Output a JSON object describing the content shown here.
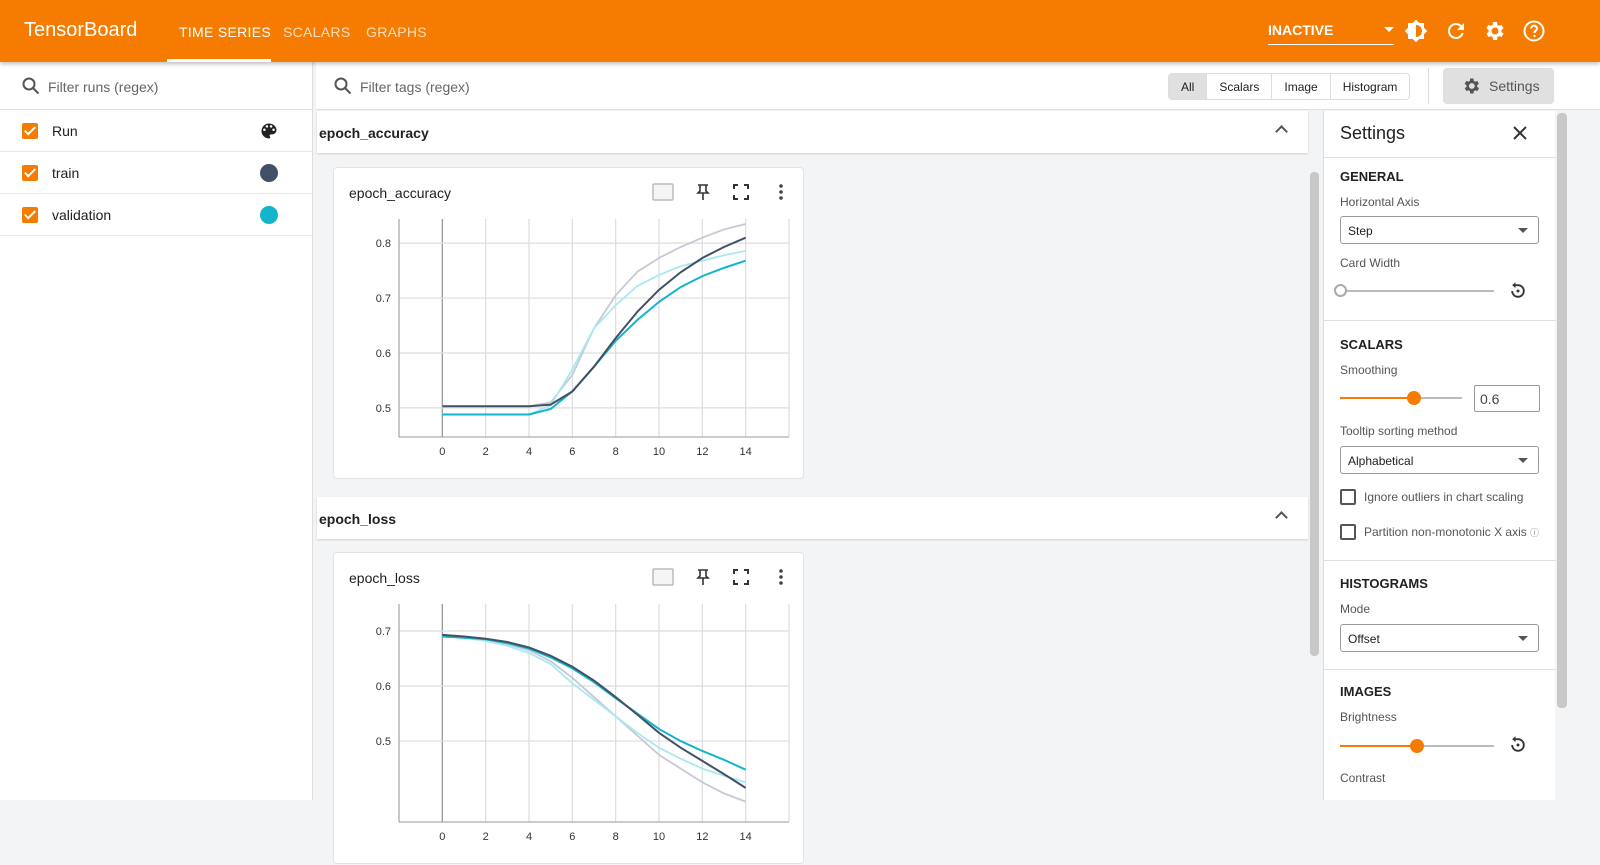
{
  "header": {
    "brand": "TensorBoard",
    "tabs": [
      {
        "label": "TIME SERIES",
        "active": true
      },
      {
        "label": "SCALARS"
      },
      {
        "label": "GRAPHS"
      }
    ],
    "run_status": "INACTIVE",
    "color": "#f57c00",
    "icons": [
      "theme-toggle-icon",
      "reload-icon",
      "settings-gear-icon",
      "help-icon"
    ]
  },
  "runs": {
    "filter_placeholder": "Filter runs (regex)",
    "header_label": "Run",
    "items": [
      {
        "label": "train",
        "color": "#425066",
        "checked": true
      },
      {
        "label": "validation",
        "color": "#12b5cb",
        "checked": true
      }
    ]
  },
  "toolbar": {
    "filter_placeholder": "Filter tags (regex)",
    "types": [
      "All",
      "Scalars",
      "Image",
      "Histogram"
    ],
    "selected_type": "All",
    "settings_label": "Settings"
  },
  "sections": [
    {
      "title": "epoch_accuracy"
    },
    {
      "title": "epoch_loss"
    }
  ],
  "chart_data": [
    {
      "type": "line",
      "title": "epoch_accuracy",
      "xlim": [
        -2,
        16
      ],
      "ylim": [
        0.447,
        0.844
      ],
      "xticks": [
        0,
        2,
        4,
        6,
        8,
        10,
        12,
        14
      ],
      "yticks": [
        0.5,
        0.6,
        0.7,
        0.8
      ],
      "grid": true,
      "x": [
        0,
        1,
        2,
        3,
        4,
        5,
        6,
        7,
        8,
        9,
        10,
        11,
        12,
        13,
        14
      ],
      "series": [
        {
          "run": "train",
          "kind": "raw",
          "color": "#c5c9d6",
          "values": [
            0.503,
            0.503,
            0.503,
            0.503,
            0.503,
            0.51,
            0.56,
            0.645,
            0.705,
            0.748,
            0.773,
            0.793,
            0.81,
            0.825,
            0.835
          ]
        },
        {
          "run": "validation",
          "kind": "raw",
          "color": "#a9e8f1",
          "values": [
            0.488,
            0.488,
            0.488,
            0.488,
            0.488,
            0.505,
            0.57,
            0.645,
            0.687,
            0.722,
            0.742,
            0.758,
            0.768,
            0.778,
            0.786
          ]
        },
        {
          "run": "validation",
          "kind": "smoothed",
          "color": "#12b5cb",
          "values": [
            0.488,
            0.488,
            0.488,
            0.488,
            0.488,
            0.498,
            0.53,
            0.575,
            0.622,
            0.66,
            0.693,
            0.72,
            0.74,
            0.755,
            0.768
          ]
        },
        {
          "run": "train",
          "kind": "smoothed",
          "color": "#425066",
          "values": [
            0.503,
            0.503,
            0.503,
            0.503,
            0.503,
            0.506,
            0.53,
            0.575,
            0.627,
            0.675,
            0.715,
            0.747,
            0.773,
            0.793,
            0.81
          ]
        }
      ]
    },
    {
      "type": "line",
      "title": "epoch_loss",
      "xlim": [
        -2,
        16
      ],
      "ylim": [
        0.353,
        0.749
      ],
      "xticks": [
        0,
        2,
        4,
        6,
        8,
        10,
        12,
        14
      ],
      "yticks": [
        0.5,
        0.6,
        0.7
      ],
      "grid": true,
      "x": [
        0,
        1,
        2,
        3,
        4,
        5,
        6,
        7,
        8,
        9,
        10,
        11,
        12,
        13,
        14
      ],
      "series": [
        {
          "run": "train",
          "kind": "raw",
          "color": "#c5c9d6",
          "values": [
            0.692,
            0.689,
            0.684,
            0.676,
            0.665,
            0.645,
            0.615,
            0.58,
            0.545,
            0.51,
            0.475,
            0.45,
            0.425,
            0.405,
            0.39
          ]
        },
        {
          "run": "validation",
          "kind": "raw",
          "color": "#a9e8f1",
          "values": [
            0.69,
            0.687,
            0.682,
            0.673,
            0.66,
            0.64,
            0.605,
            0.575,
            0.545,
            0.515,
            0.488,
            0.468,
            0.45,
            0.437,
            0.425
          ]
        },
        {
          "run": "validation",
          "kind": "smoothed",
          "color": "#12b5cb",
          "values": [
            0.69,
            0.688,
            0.685,
            0.678,
            0.668,
            0.652,
            0.632,
            0.607,
            0.578,
            0.55,
            0.522,
            0.5,
            0.482,
            0.466,
            0.448
          ]
        },
        {
          "run": "train",
          "kind": "smoothed",
          "color": "#425066",
          "values": [
            0.693,
            0.69,
            0.686,
            0.68,
            0.67,
            0.655,
            0.635,
            0.61,
            0.58,
            0.548,
            0.515,
            0.488,
            0.464,
            0.44,
            0.415
          ]
        }
      ]
    }
  ],
  "settings": {
    "title": "Settings",
    "general": {
      "title": "GENERAL",
      "horizontal_axis_label": "Horizontal Axis",
      "horizontal_axis": "Step",
      "card_width_label": "Card Width",
      "card_width": 0
    },
    "scalars": {
      "title": "SCALARS",
      "smoothing_label": "Smoothing",
      "smoothing": "0.6",
      "smoothing_fraction": 0.6,
      "tooltip_label": "Tooltip sorting method",
      "tooltip": "Alphabetical",
      "ignore_outliers": "Ignore outliers in chart scaling",
      "partition": "Partition non-monotonic X axis"
    },
    "histograms": {
      "title": "HISTOGRAMS",
      "mode_label": "Mode",
      "mode": "Offset"
    },
    "images": {
      "title": "IMAGES",
      "brightness_label": "Brightness",
      "brightness_fraction": 0.5,
      "contrast_label": "Contrast"
    }
  }
}
